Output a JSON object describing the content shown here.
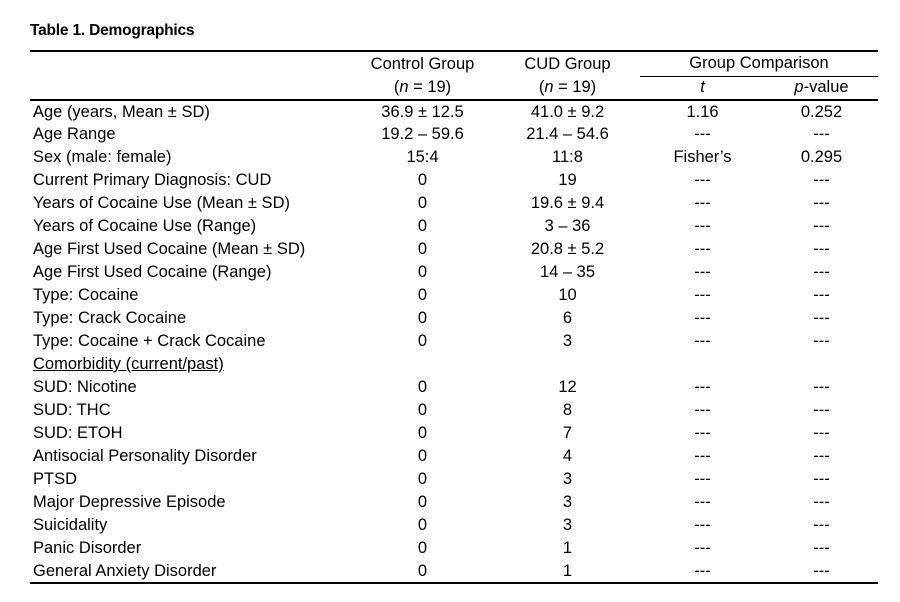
{
  "title": "Table 1. Demographics",
  "table": {
    "header": {
      "control_label": "Control Group",
      "control_sub": {
        "prefix": "(",
        "italic": "n",
        "suffix": " = 19)"
      },
      "cud_label": "CUD Group",
      "cud_sub": {
        "prefix": "(",
        "italic": "n",
        "suffix": " = 19)"
      },
      "comparison_label": "Group Comparison",
      "t_label": "t",
      "p_label": {
        "italic": "p",
        "suffix": "-value"
      }
    },
    "rows": [
      {
        "label": "Age (years, Mean ± SD)",
        "control": "36.9 ± 12.5",
        "cud": "41.0 ± 9.2",
        "t": "1.16",
        "p": "0.252"
      },
      {
        "label": "Age Range",
        "control": "19.2 – 59.6",
        "cud": "21.4 – 54.6",
        "t": "---",
        "p": "---"
      },
      {
        "label": "Sex (male: female)",
        "control": "15:4",
        "cud": "11:8",
        "t": "Fisher’s",
        "p": "0.295"
      },
      {
        "label": "Current Primary Diagnosis: CUD",
        "control": "0",
        "cud": "19",
        "t": "---",
        "p": "---"
      },
      {
        "label": "Years of Cocaine Use (Mean ± SD)",
        "control": "0",
        "cud": "19.6 ± 9.4",
        "t": "---",
        "p": "---"
      },
      {
        "label": "Years of Cocaine Use (Range)",
        "control": "0",
        "cud": "3 – 36",
        "t": "---",
        "p": "---"
      },
      {
        "label": "Age First Used Cocaine (Mean ± SD)",
        "control": "0",
        "cud": "20.8 ± 5.2",
        "t": "---",
        "p": "---"
      },
      {
        "label": "Age First Used Cocaine (Range)",
        "control": "0",
        "cud": "14 – 35",
        "t": "---",
        "p": "---"
      },
      {
        "label": "Type: Cocaine",
        "control": "0",
        "cud": "10",
        "t": "---",
        "p": "---"
      },
      {
        "label": "Type: Crack Cocaine",
        "control": "0",
        "cud": "6",
        "t": "---",
        "p": "---"
      },
      {
        "label": "Type: Cocaine + Crack Cocaine",
        "control": "0",
        "cud": "3",
        "t": "---",
        "p": "---"
      },
      {
        "label": "Comorbidity (current/past)",
        "section": true,
        "control": "",
        "cud": "",
        "t": "",
        "p": ""
      },
      {
        "label": "SUD: Nicotine",
        "control": "0",
        "cud": "12",
        "t": "---",
        "p": "---"
      },
      {
        "label": "SUD: THC",
        "control": "0",
        "cud": "8",
        "t": "---",
        "p": "---"
      },
      {
        "label": "SUD: ETOH",
        "control": "0",
        "cud": "7",
        "t": "---",
        "p": "---"
      },
      {
        "label": "Antisocial Personality Disorder",
        "control": "0",
        "cud": "4",
        "t": "---",
        "p": "---"
      },
      {
        "label": "PTSD",
        "control": "0",
        "cud": "3",
        "t": "---",
        "p": "---"
      },
      {
        "label": "Major Depressive Episode",
        "control": "0",
        "cud": "3",
        "t": "---",
        "p": "---"
      },
      {
        "label": "Suicidality",
        "control": "0",
        "cud": "3",
        "t": "---",
        "p": "---"
      },
      {
        "label": "Panic Disorder",
        "control": "0",
        "cud": "1",
        "t": "---",
        "p": "---"
      },
      {
        "label": "General Anxiety Disorder",
        "control": "0",
        "cud": "1",
        "t": "---",
        "p": "---"
      }
    ]
  }
}
